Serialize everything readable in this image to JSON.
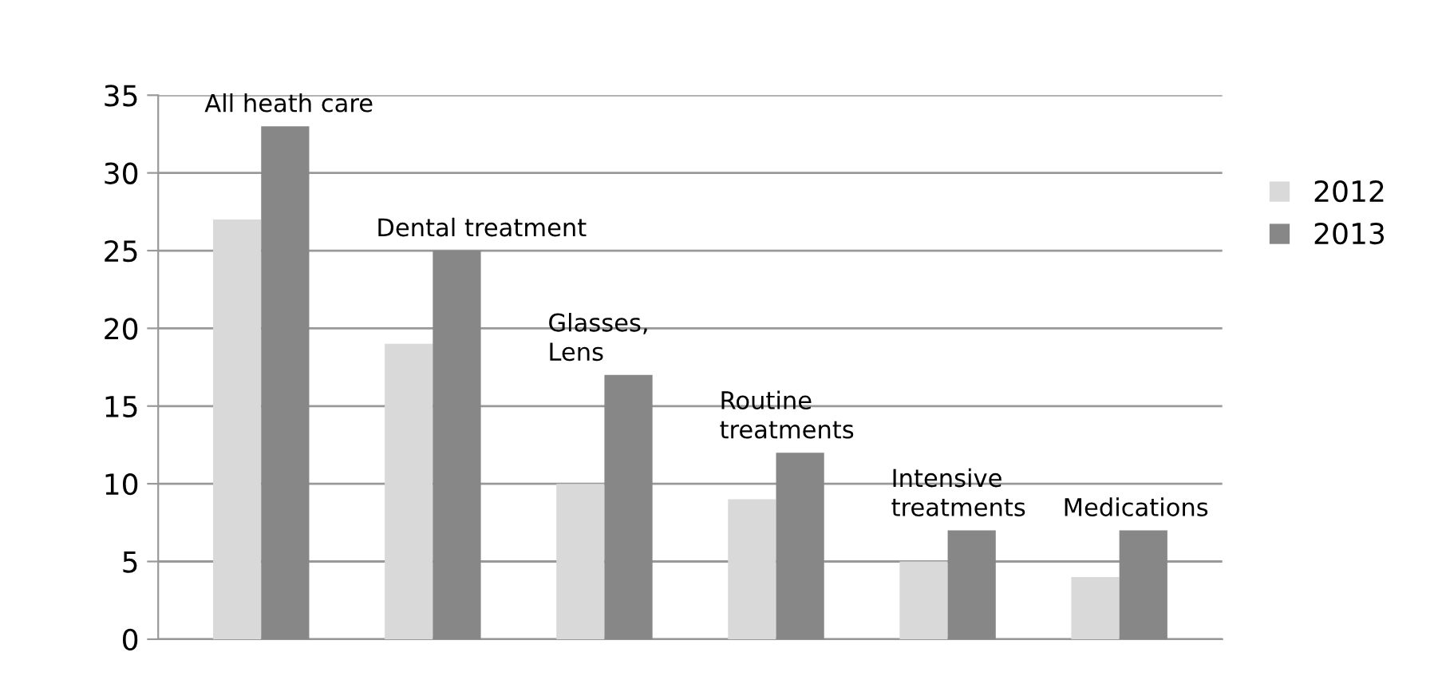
{
  "chart_data": {
    "type": "bar",
    "categories": [
      "All heath care",
      "Dental treatment",
      "Glasses,\nLens",
      "Routine\ntreatments",
      "Intensive\ntreatments",
      "Medications"
    ],
    "series": [
      {
        "name": "2012",
        "color": "#d9d9d9",
        "values": [
          27,
          19,
          10,
          9,
          5,
          4
        ]
      },
      {
        "name": "2013",
        "color": "#878787",
        "values": [
          33,
          25,
          17,
          12,
          7,
          7
        ]
      }
    ],
    "ylim": [
      0,
      35
    ],
    "yticks": [
      0,
      5,
      10,
      15,
      20,
      25,
      30,
      35
    ],
    "grid": "y",
    "legend": "right"
  }
}
